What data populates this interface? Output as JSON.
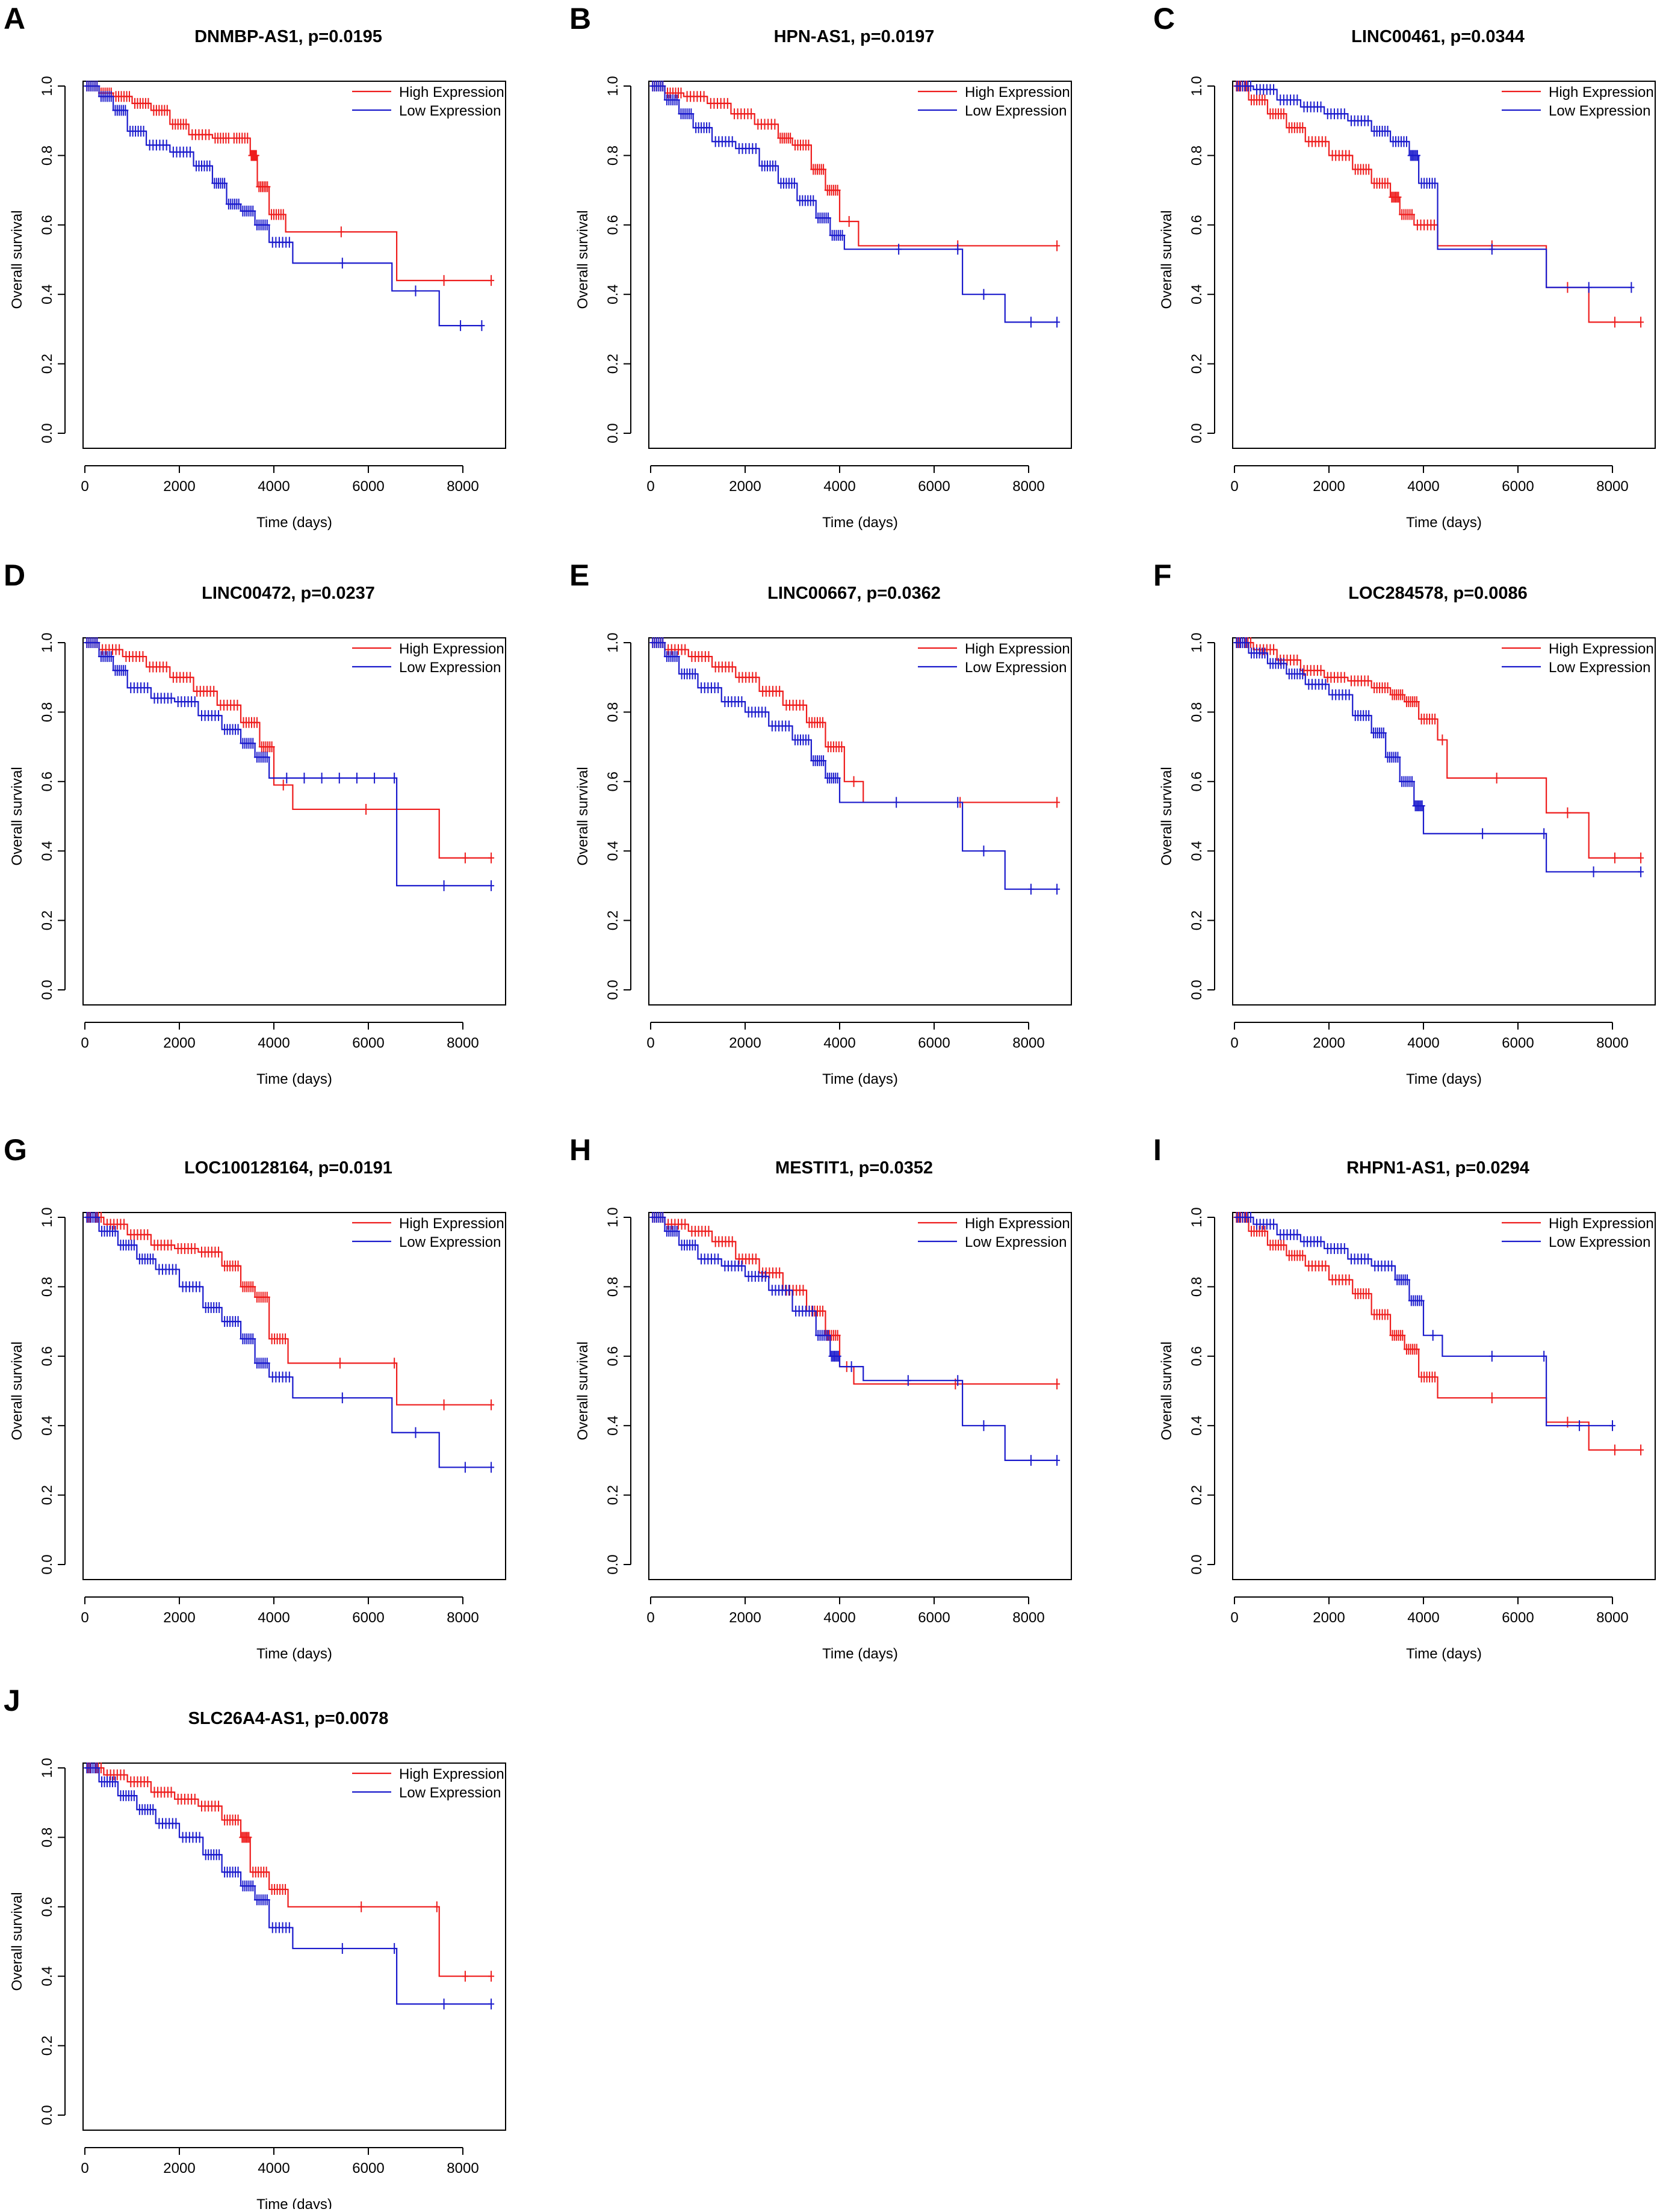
{
  "figure": {
    "ylabel": "Overall survival",
    "xlabel": "Time (days)",
    "legend_high": "High Expression",
    "legend_low": "Low Expression",
    "colors": {
      "high": "#ee1c1c",
      "low": "#1a1acc",
      "axis": "#000000"
    }
  },
  "chart_data": [
    {
      "panel": "A",
      "type": "line",
      "title": "DNMBP-AS1, p=0.0195",
      "xlabel": "Time (days)",
      "ylabel": "Overall survival",
      "xlim": [
        0,
        8600
      ],
      "ylim": [
        0,
        1
      ],
      "xticks": [
        "0",
        "2000",
        "4000",
        "6000",
        "8000"
      ],
      "yticks": [
        "0.0",
        "0.2",
        "0.4",
        "0.6",
        "0.8",
        "1.0"
      ],
      "legend": "top-right",
      "series": [
        {
          "name": "High Expression",
          "x": [
            0,
            300,
            600,
            1000,
            1400,
            1800,
            2200,
            2700,
            3100,
            3500,
            3650,
            3900,
            4250,
            6600,
            8600
          ],
          "y": [
            1.0,
            0.98,
            0.97,
            0.95,
            0.93,
            0.89,
            0.86,
            0.85,
            0.85,
            0.8,
            0.71,
            0.63,
            0.58,
            0.44,
            0.44
          ]
        },
        {
          "name": "Low Expression",
          "x": [
            0,
            300,
            600,
            900,
            1300,
            1800,
            2300,
            2700,
            3000,
            3300,
            3600,
            3900,
            4400,
            6500,
            7500,
            8400
          ],
          "y": [
            1.0,
            0.97,
            0.93,
            0.87,
            0.83,
            0.81,
            0.77,
            0.72,
            0.66,
            0.64,
            0.6,
            0.55,
            0.49,
            0.41,
            0.31,
            0.31
          ]
        }
      ]
    },
    {
      "panel": "B",
      "type": "line",
      "title": "HPN-AS1, p=0.0197",
      "xlabel": "Time (days)",
      "ylabel": "Overall survival",
      "xlim": [
        0,
        8600
      ],
      "ylim": [
        0,
        1
      ],
      "xticks": [
        "0",
        "2000",
        "4000",
        "6000",
        "8000"
      ],
      "yticks": [
        "0.0",
        "0.2",
        "0.4",
        "0.6",
        "0.8",
        "1.0"
      ],
      "legend": "top-right",
      "series": [
        {
          "name": "High Expression",
          "x": [
            0,
            300,
            700,
            1200,
            1700,
            2200,
            2700,
            3000,
            3400,
            3700,
            4000,
            4400,
            8600
          ],
          "y": [
            1.0,
            0.98,
            0.97,
            0.95,
            0.92,
            0.89,
            0.85,
            0.83,
            0.76,
            0.7,
            0.61,
            0.54,
            0.54
          ]
        },
        {
          "name": "Low Expression",
          "x": [
            0,
            300,
            600,
            900,
            1300,
            1800,
            2300,
            2700,
            3100,
            3500,
            3800,
            4100,
            6400,
            6600,
            7500,
            8600
          ],
          "y": [
            1.0,
            0.96,
            0.92,
            0.88,
            0.84,
            0.82,
            0.77,
            0.72,
            0.67,
            0.62,
            0.57,
            0.53,
            0.53,
            0.4,
            0.32,
            0.32
          ]
        }
      ]
    },
    {
      "panel": "C",
      "type": "line",
      "title": "LINC00461, p=0.0344",
      "xlabel": "Time (days)",
      "ylabel": "Overall survival",
      "xlim": [
        0,
        8600
      ],
      "ylim": [
        0,
        1
      ],
      "xticks": [
        "0",
        "2000",
        "4000",
        "6000",
        "8000"
      ],
      "yticks": [
        "0.0",
        "0.2",
        "0.4",
        "0.6",
        "0.8",
        "1.0"
      ],
      "legend": "top-right",
      "series": [
        {
          "name": "High Expression",
          "x": [
            0,
            300,
            700,
            1100,
            1500,
            2000,
            2500,
            2900,
            3300,
            3500,
            3800,
            4300,
            6600,
            7500,
            8600
          ],
          "y": [
            1.0,
            0.96,
            0.92,
            0.88,
            0.84,
            0.8,
            0.76,
            0.72,
            0.68,
            0.63,
            0.6,
            0.54,
            0.42,
            0.32,
            0.32
          ]
        },
        {
          "name": "Low Expression",
          "x": [
            0,
            400,
            900,
            1400,
            1900,
            2400,
            2900,
            3300,
            3700,
            3900,
            4300,
            6600,
            8400
          ],
          "y": [
            1.0,
            0.99,
            0.96,
            0.94,
            0.92,
            0.9,
            0.87,
            0.84,
            0.8,
            0.72,
            0.53,
            0.42,
            0.42
          ]
        }
      ]
    },
    {
      "panel": "D",
      "type": "line",
      "title": "LINC00472, p=0.0237",
      "xlabel": "Time (days)",
      "ylabel": "Overall survival",
      "xlim": [
        0,
        8600
      ],
      "ylim": [
        0,
        1
      ],
      "xticks": [
        "0",
        "2000",
        "4000",
        "6000",
        "8000"
      ],
      "yticks": [
        "0.0",
        "0.2",
        "0.4",
        "0.6",
        "0.8",
        "1.0"
      ],
      "legend": "top-right",
      "series": [
        {
          "name": "High Expression",
          "x": [
            0,
            300,
            800,
            1300,
            1800,
            2300,
            2800,
            3300,
            3700,
            4000,
            4400,
            7500,
            8600
          ],
          "y": [
            1.0,
            0.98,
            0.96,
            0.93,
            0.9,
            0.86,
            0.82,
            0.77,
            0.7,
            0.59,
            0.52,
            0.38,
            0.38
          ]
        },
        {
          "name": "Low Expression",
          "x": [
            0,
            300,
            600,
            900,
            1400,
            1900,
            2400,
            2900,
            3300,
            3600,
            3900,
            6500,
            6600,
            8600
          ],
          "y": [
            1.0,
            0.96,
            0.92,
            0.87,
            0.84,
            0.83,
            0.79,
            0.75,
            0.71,
            0.67,
            0.61,
            0.61,
            0.3,
            0.3
          ]
        }
      ]
    },
    {
      "panel": "E",
      "type": "line",
      "title": "LINC00667, p=0.0362",
      "xlabel": "Time (days)",
      "ylabel": "Overall survival",
      "xlim": [
        0,
        8600
      ],
      "ylim": [
        0,
        1
      ],
      "xticks": [
        "0",
        "2000",
        "4000",
        "6000",
        "8000"
      ],
      "yticks": [
        "0.0",
        "0.2",
        "0.4",
        "0.6",
        "0.8",
        "1.0"
      ],
      "legend": "top-right",
      "series": [
        {
          "name": "High Expression",
          "x": [
            0,
            300,
            800,
            1300,
            1800,
            2300,
            2800,
            3300,
            3700,
            4100,
            4500,
            8600
          ],
          "y": [
            1.0,
            0.98,
            0.96,
            0.93,
            0.9,
            0.86,
            0.82,
            0.77,
            0.7,
            0.6,
            0.54,
            0.54
          ]
        },
        {
          "name": "Low Expression",
          "x": [
            0,
            300,
            600,
            1000,
            1500,
            2000,
            2500,
            3000,
            3400,
            3700,
            4000,
            6400,
            6600,
            7500,
            8600
          ],
          "y": [
            1.0,
            0.96,
            0.91,
            0.87,
            0.83,
            0.8,
            0.76,
            0.72,
            0.66,
            0.61,
            0.54,
            0.54,
            0.4,
            0.29,
            0.29
          ]
        }
      ]
    },
    {
      "panel": "F",
      "type": "line",
      "title": "LOC284578, p=0.0086",
      "xlabel": "Time (days)",
      "ylabel": "Overall survival",
      "xlim": [
        0,
        8600
      ],
      "ylim": [
        0,
        1
      ],
      "xticks": [
        "0",
        "2000",
        "4000",
        "6000",
        "8000"
      ],
      "yticks": [
        "0.0",
        "0.2",
        "0.4",
        "0.6",
        "0.8",
        "1.0"
      ],
      "legend": "top-right",
      "series": [
        {
          "name": "High Expression",
          "x": [
            0,
            400,
            900,
            1400,
            1900,
            2400,
            2900,
            3300,
            3600,
            3900,
            4300,
            4500,
            6600,
            7500,
            8600
          ],
          "y": [
            1.0,
            0.98,
            0.95,
            0.92,
            0.9,
            0.89,
            0.87,
            0.85,
            0.83,
            0.78,
            0.72,
            0.61,
            0.51,
            0.38,
            0.38
          ]
        },
        {
          "name": "Low Expression",
          "x": [
            0,
            300,
            700,
            1100,
            1500,
            2000,
            2500,
            2900,
            3200,
            3500,
            3800,
            4000,
            6500,
            6600,
            8600
          ],
          "y": [
            1.0,
            0.97,
            0.94,
            0.91,
            0.88,
            0.85,
            0.79,
            0.74,
            0.67,
            0.6,
            0.53,
            0.45,
            0.45,
            0.34,
            0.34
          ]
        }
      ]
    },
    {
      "panel": "G",
      "type": "line",
      "title": "LOC100128164, p=0.0191",
      "xlabel": "Time (days)",
      "ylabel": "Overall survival",
      "xlim": [
        0,
        8600
      ],
      "ylim": [
        0,
        1
      ],
      "xticks": [
        "0",
        "2000",
        "4000",
        "6000",
        "8000"
      ],
      "yticks": [
        "0.0",
        "0.2",
        "0.4",
        "0.6",
        "0.8",
        "1.0"
      ],
      "legend": "top-right",
      "series": [
        {
          "name": "High Expression",
          "x": [
            0,
            400,
            900,
            1400,
            1900,
            2400,
            2900,
            3300,
            3600,
            3900,
            4300,
            6500,
            6600,
            8600
          ],
          "y": [
            1.0,
            0.98,
            0.95,
            0.92,
            0.91,
            0.9,
            0.86,
            0.8,
            0.77,
            0.65,
            0.58,
            0.58,
            0.46,
            0.46
          ]
        },
        {
          "name": "Low Expression",
          "x": [
            0,
            300,
            700,
            1100,
            1500,
            2000,
            2500,
            2900,
            3300,
            3600,
            3900,
            4400,
            6500,
            7500,
            8600
          ],
          "y": [
            1.0,
            0.96,
            0.92,
            0.88,
            0.85,
            0.8,
            0.74,
            0.7,
            0.65,
            0.58,
            0.54,
            0.48,
            0.38,
            0.28,
            0.28
          ]
        }
      ]
    },
    {
      "panel": "H",
      "type": "line",
      "title": "MESTIT1, p=0.0352",
      "xlabel": "Time (days)",
      "ylabel": "Overall survival",
      "xlim": [
        0,
        8600
      ],
      "ylim": [
        0,
        1
      ],
      "xticks": [
        "0",
        "2000",
        "4000",
        "6000",
        "8000"
      ],
      "yticks": [
        "0.0",
        "0.2",
        "0.4",
        "0.6",
        "0.8",
        "1.0"
      ],
      "legend": "top-right",
      "series": [
        {
          "name": "High Expression",
          "x": [
            0,
            300,
            800,
            1300,
            1800,
            2300,
            2800,
            3300,
            3700,
            4000,
            4300,
            8600
          ],
          "y": [
            1.0,
            0.98,
            0.96,
            0.93,
            0.88,
            0.84,
            0.79,
            0.73,
            0.66,
            0.57,
            0.52,
            0.52
          ]
        },
        {
          "name": "Low Expression",
          "x": [
            0,
            300,
            600,
            1000,
            1500,
            2000,
            2500,
            3000,
            3500,
            3800,
            4000,
            4500,
            6400,
            6600,
            7500,
            8600
          ],
          "y": [
            1.0,
            0.96,
            0.92,
            0.88,
            0.86,
            0.83,
            0.79,
            0.73,
            0.66,
            0.6,
            0.57,
            0.53,
            0.53,
            0.4,
            0.3,
            0.3
          ]
        }
      ]
    },
    {
      "panel": "I",
      "type": "line",
      "title": "RHPN1-AS1, p=0.0294",
      "xlabel": "Time (days)",
      "ylabel": "Overall survival",
      "xlim": [
        0,
        8600
      ],
      "ylim": [
        0,
        1
      ],
      "xticks": [
        "0",
        "2000",
        "4000",
        "6000",
        "8000"
      ],
      "yticks": [
        "0.0",
        "0.2",
        "0.4",
        "0.6",
        "0.8",
        "1.0"
      ],
      "legend": "top-right",
      "series": [
        {
          "name": "High Expression",
          "x": [
            0,
            300,
            700,
            1100,
            1500,
            2000,
            2500,
            2900,
            3300,
            3600,
            3900,
            4300,
            6600,
            7500,
            8600
          ],
          "y": [
            1.0,
            0.96,
            0.92,
            0.89,
            0.86,
            0.82,
            0.78,
            0.72,
            0.66,
            0.62,
            0.54,
            0.48,
            0.41,
            0.33,
            0.33
          ]
        },
        {
          "name": "Low Expression",
          "x": [
            0,
            400,
            900,
            1400,
            1900,
            2400,
            2900,
            3400,
            3700,
            4000,
            4400,
            6500,
            6600,
            8000
          ],
          "y": [
            1.0,
            0.98,
            0.95,
            0.93,
            0.91,
            0.88,
            0.86,
            0.82,
            0.76,
            0.66,
            0.6,
            0.6,
            0.4,
            0.4
          ]
        }
      ]
    },
    {
      "panel": "J",
      "type": "line",
      "title": "SLC26A4-AS1, p=0.0078",
      "xlabel": "Time (days)",
      "ylabel": "Overall survival",
      "xlim": [
        0,
        8600
      ],
      "ylim": [
        0,
        1
      ],
      "xticks": [
        "0",
        "2000",
        "4000",
        "6000",
        "8000"
      ],
      "yticks": [
        "0.0",
        "0.2",
        "0.4",
        "0.6",
        "0.8",
        "1.0"
      ],
      "legend": "top-right",
      "series": [
        {
          "name": "High Expression",
          "x": [
            0,
            400,
            900,
            1400,
            1900,
            2400,
            2900,
            3300,
            3500,
            3900,
            4300,
            7400,
            7500,
            8600
          ],
          "y": [
            1.0,
            0.98,
            0.96,
            0.93,
            0.91,
            0.89,
            0.85,
            0.8,
            0.7,
            0.65,
            0.6,
            0.6,
            0.4,
            0.4
          ]
        },
        {
          "name": "Low Expression",
          "x": [
            0,
            300,
            700,
            1100,
            1500,
            2000,
            2500,
            2900,
            3300,
            3600,
            3900,
            4400,
            6500,
            6600,
            8600
          ],
          "y": [
            1.0,
            0.96,
            0.92,
            0.88,
            0.84,
            0.8,
            0.75,
            0.7,
            0.66,
            0.62,
            0.54,
            0.48,
            0.48,
            0.32,
            0.32
          ]
        }
      ]
    }
  ]
}
